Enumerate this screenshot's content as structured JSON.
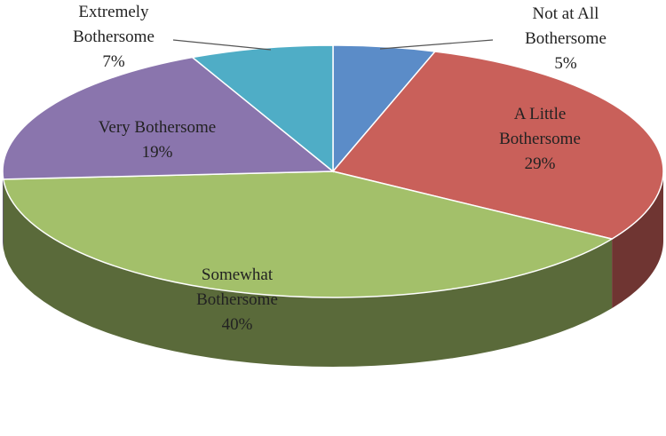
{
  "chart_data": {
    "type": "pie",
    "categories": [
      "Not at All Bothersome",
      "A Little Bothersome",
      "Somewhat Bothersome",
      "Very Bothersome",
      "Extremely Bothersome"
    ],
    "values": [
      5,
      29,
      40,
      19,
      7
    ],
    "value_labels": [
      "5%",
      "29%",
      "40%",
      "19%",
      "7%"
    ],
    "colors": [
      "#5b8cc8",
      "#c9605a",
      "#a3c06a",
      "#8a75ad",
      "#4fadc6"
    ]
  }
}
